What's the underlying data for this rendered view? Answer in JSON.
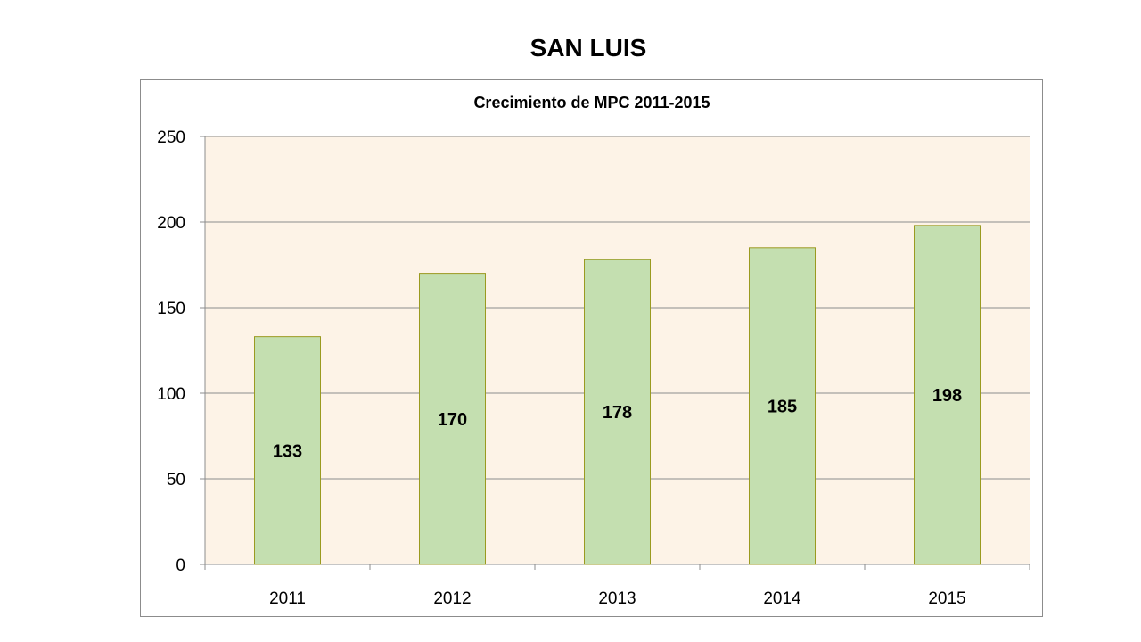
{
  "slide": {
    "title": "SAN LUIS"
  },
  "chart_data": {
    "type": "bar",
    "title": "Crecimiento de MPC 2011-2015",
    "categories": [
      "2011",
      "2012",
      "2013",
      "2014",
      "2015"
    ],
    "series": [
      {
        "values": [
          133,
          170,
          178,
          185,
          198
        ]
      }
    ],
    "data_labels": [
      "133",
      "170",
      "178",
      "185",
      "198"
    ],
    "ylim": [
      0,
      250
    ],
    "y_ticks": [
      0,
      50,
      100,
      150,
      200,
      250
    ],
    "grid": true,
    "legend": "none",
    "colors": {
      "bar_fill": "#c4dfb0",
      "bar_stroke": "#9a9a20",
      "plot_background": "#fdf3e7",
      "grid": "#8c8c8c"
    }
  }
}
